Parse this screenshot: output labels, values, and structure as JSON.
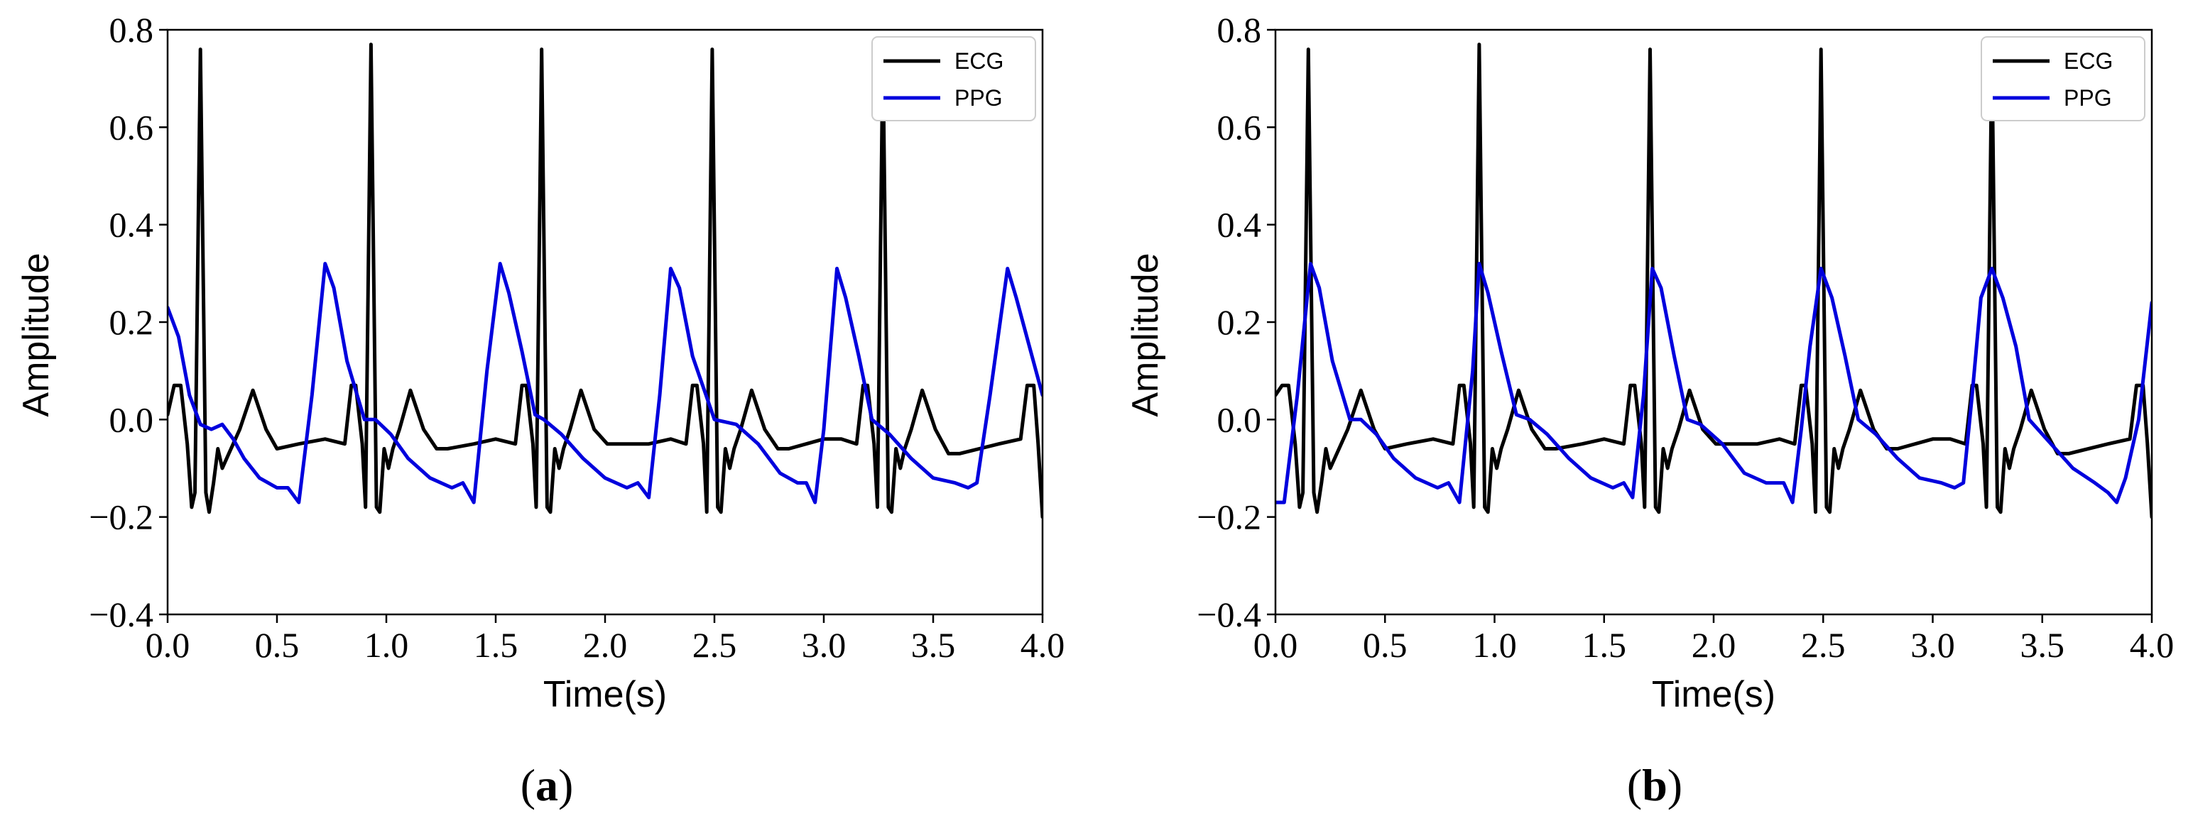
{
  "chart_data": [
    {
      "type": "line",
      "panel_label": "(a)",
      "xlabel": "Time(s)",
      "ylabel": "Amplitude",
      "xlim": [
        0,
        4
      ],
      "ylim": [
        -0.4,
        0.8
      ],
      "xticks": [
        0.0,
        0.5,
        1.0,
        1.5,
        2.0,
        2.5,
        3.0,
        3.5,
        4.0
      ],
      "xtick_labels": [
        "0.0",
        "0.5",
        "1.0",
        "1.5",
        "2.0",
        "2.5",
        "3.0",
        "3.5",
        "4.0"
      ],
      "yticks": [
        -0.4,
        -0.2,
        0.0,
        0.2,
        0.4,
        0.6,
        0.8
      ],
      "ytick_labels": [
        "−0.4",
        "−0.2",
        "0.0",
        "0.2",
        "0.4",
        "0.6",
        "0.8"
      ],
      "legend_position": "top-right",
      "series": [
        {
          "name": "ECG",
          "color": "#000000",
          "x": [
            0.0,
            0.03,
            0.06,
            0.09,
            0.11,
            0.125,
            0.15,
            0.175,
            0.19,
            0.21,
            0.23,
            0.25,
            0.28,
            0.33,
            0.39,
            0.45,
            0.5,
            0.6,
            0.72,
            0.81,
            0.84,
            0.86,
            0.89,
            0.905,
            0.93,
            0.955,
            0.97,
            0.99,
            1.01,
            1.03,
            1.06,
            1.11,
            1.17,
            1.23,
            1.28,
            1.4,
            1.5,
            1.59,
            1.62,
            1.64,
            1.67,
            1.685,
            1.71,
            1.735,
            1.75,
            1.77,
            1.79,
            1.81,
            1.84,
            1.89,
            1.95,
            2.01,
            2.06,
            2.2,
            2.3,
            2.37,
            2.4,
            2.42,
            2.45,
            2.465,
            2.49,
            2.515,
            2.53,
            2.55,
            2.57,
            2.59,
            2.62,
            2.67,
            2.73,
            2.79,
            2.84,
            3.0,
            3.08,
            3.15,
            3.18,
            3.2,
            3.23,
            3.245,
            3.27,
            3.295,
            3.31,
            3.33,
            3.35,
            3.37,
            3.4,
            3.45,
            3.51,
            3.57,
            3.62,
            3.8,
            3.9,
            3.93,
            3.96,
            3.98,
            4.0
          ],
          "values": [
            0.01,
            0.07,
            0.07,
            -0.05,
            -0.18,
            -0.15,
            0.76,
            -0.15,
            -0.19,
            -0.13,
            -0.06,
            -0.1,
            -0.07,
            -0.02,
            0.06,
            -0.02,
            -0.06,
            -0.05,
            -0.04,
            -0.05,
            0.07,
            0.07,
            -0.05,
            -0.18,
            0.77,
            -0.18,
            -0.19,
            -0.06,
            -0.1,
            -0.06,
            -0.02,
            0.06,
            -0.02,
            -0.06,
            -0.06,
            -0.05,
            -0.04,
            -0.05,
            0.07,
            0.07,
            -0.05,
            -0.18,
            0.76,
            -0.18,
            -0.19,
            -0.06,
            -0.1,
            -0.06,
            -0.02,
            0.06,
            -0.02,
            -0.05,
            -0.05,
            -0.05,
            -0.04,
            -0.05,
            0.07,
            0.07,
            -0.05,
            -0.19,
            0.76,
            -0.18,
            -0.19,
            -0.06,
            -0.1,
            -0.06,
            -0.02,
            0.06,
            -0.02,
            -0.06,
            -0.06,
            -0.04,
            -0.04,
            -0.05,
            0.07,
            0.07,
            -0.05,
            -0.18,
            0.76,
            -0.18,
            -0.19,
            -0.06,
            -0.1,
            -0.06,
            -0.02,
            0.06,
            -0.02,
            -0.07,
            -0.07,
            -0.05,
            -0.04,
            0.07,
            0.07,
            -0.05,
            -0.2
          ]
        },
        {
          "name": "PPG",
          "color": "#0000dd",
          "x": [
            0.0,
            0.05,
            0.1,
            0.15,
            0.2,
            0.25,
            0.3,
            0.35,
            0.42,
            0.5,
            0.55,
            0.6,
            0.66,
            0.72,
            0.76,
            0.82,
            0.9,
            0.95,
            1.02,
            1.1,
            1.2,
            1.3,
            1.35,
            1.4,
            1.46,
            1.52,
            1.56,
            1.62,
            1.68,
            1.72,
            1.8,
            1.9,
            2.0,
            2.1,
            2.15,
            2.2,
            2.25,
            2.3,
            2.34,
            2.4,
            2.5,
            2.6,
            2.7,
            2.8,
            2.88,
            2.92,
            2.96,
            3.0,
            3.06,
            3.1,
            3.16,
            3.22,
            3.3,
            3.4,
            3.5,
            3.6,
            3.66,
            3.7,
            3.76,
            3.84,
            3.88,
            3.94,
            4.0
          ],
          "values": [
            0.23,
            0.17,
            0.05,
            -0.01,
            -0.02,
            -0.01,
            -0.04,
            -0.08,
            -0.12,
            -0.14,
            -0.14,
            -0.17,
            0.05,
            0.32,
            0.27,
            0.12,
            0.0,
            0.0,
            -0.03,
            -0.08,
            -0.12,
            -0.14,
            -0.13,
            -0.17,
            0.1,
            0.32,
            0.26,
            0.14,
            0.01,
            0.0,
            -0.03,
            -0.08,
            -0.12,
            -0.14,
            -0.13,
            -0.16,
            0.05,
            0.31,
            0.27,
            0.13,
            0.0,
            -0.01,
            -0.05,
            -0.11,
            -0.13,
            -0.13,
            -0.17,
            -0.02,
            0.31,
            0.25,
            0.13,
            0.0,
            -0.03,
            -0.08,
            -0.12,
            -0.13,
            -0.14,
            -0.13,
            0.05,
            0.31,
            0.25,
            0.15,
            0.05
          ]
        }
      ]
    },
    {
      "type": "line",
      "panel_label": "(b)",
      "xlabel": "Time(s)",
      "ylabel": "Amplitude",
      "xlim": [
        0,
        4
      ],
      "ylim": [
        -0.4,
        0.8
      ],
      "xticks": [
        0.0,
        0.5,
        1.0,
        1.5,
        2.0,
        2.5,
        3.0,
        3.5,
        4.0
      ],
      "xtick_labels": [
        "0.0",
        "0.5",
        "1.0",
        "1.5",
        "2.0",
        "2.5",
        "3.0",
        "3.5",
        "4.0"
      ],
      "yticks": [
        -0.4,
        -0.2,
        0.0,
        0.2,
        0.4,
        0.6,
        0.8
      ],
      "ytick_labels": [
        "−0.4",
        "−0.2",
        "0.0",
        "0.2",
        "0.4",
        "0.6",
        "0.8"
      ],
      "legend_position": "top-right",
      "series": [
        {
          "name": "ECG",
          "color": "#000000",
          "x": [
            0.0,
            0.03,
            0.06,
            0.09,
            0.11,
            0.125,
            0.15,
            0.175,
            0.19,
            0.21,
            0.23,
            0.25,
            0.28,
            0.33,
            0.39,
            0.45,
            0.5,
            0.6,
            0.72,
            0.81,
            0.84,
            0.86,
            0.89,
            0.905,
            0.93,
            0.955,
            0.97,
            0.99,
            1.01,
            1.03,
            1.06,
            1.11,
            1.17,
            1.23,
            1.28,
            1.4,
            1.5,
            1.59,
            1.62,
            1.64,
            1.67,
            1.685,
            1.71,
            1.735,
            1.75,
            1.77,
            1.79,
            1.81,
            1.84,
            1.89,
            1.95,
            2.01,
            2.06,
            2.2,
            2.3,
            2.37,
            2.4,
            2.42,
            2.45,
            2.465,
            2.49,
            2.515,
            2.53,
            2.55,
            2.57,
            2.59,
            2.62,
            2.67,
            2.73,
            2.79,
            2.84,
            3.0,
            3.08,
            3.15,
            3.18,
            3.2,
            3.23,
            3.245,
            3.27,
            3.295,
            3.31,
            3.33,
            3.35,
            3.37,
            3.4,
            3.45,
            3.51,
            3.57,
            3.62,
            3.8,
            3.9,
            3.93,
            3.96,
            3.98,
            4.0
          ],
          "values": [
            0.05,
            0.07,
            0.07,
            -0.05,
            -0.18,
            -0.15,
            0.76,
            -0.15,
            -0.19,
            -0.13,
            -0.06,
            -0.1,
            -0.07,
            -0.02,
            0.06,
            -0.02,
            -0.06,
            -0.05,
            -0.04,
            -0.05,
            0.07,
            0.07,
            -0.05,
            -0.18,
            0.77,
            -0.18,
            -0.19,
            -0.06,
            -0.1,
            -0.06,
            -0.02,
            0.06,
            -0.02,
            -0.06,
            -0.06,
            -0.05,
            -0.04,
            -0.05,
            0.07,
            0.07,
            -0.05,
            -0.18,
            0.76,
            -0.18,
            -0.19,
            -0.06,
            -0.1,
            -0.06,
            -0.02,
            0.06,
            -0.02,
            -0.05,
            -0.05,
            -0.05,
            -0.04,
            -0.05,
            0.07,
            0.07,
            -0.05,
            -0.19,
            0.76,
            -0.18,
            -0.19,
            -0.06,
            -0.1,
            -0.06,
            -0.02,
            0.06,
            -0.02,
            -0.06,
            -0.06,
            -0.04,
            -0.04,
            -0.05,
            0.07,
            0.07,
            -0.05,
            -0.18,
            0.76,
            -0.18,
            -0.19,
            -0.06,
            -0.1,
            -0.06,
            -0.02,
            0.06,
            -0.02,
            -0.07,
            -0.07,
            -0.05,
            -0.04,
            0.07,
            0.07,
            -0.05,
            -0.2
          ]
        },
        {
          "name": "PPG",
          "color": "#0000dd",
          "x": [
            0.0,
            0.04,
            0.1,
            0.16,
            0.2,
            0.26,
            0.34,
            0.39,
            0.46,
            0.54,
            0.64,
            0.74,
            0.79,
            0.84,
            0.9,
            0.93,
            0.97,
            1.03,
            1.1,
            1.16,
            1.24,
            1.34,
            1.44,
            1.54,
            1.59,
            1.63,
            1.68,
            1.72,
            1.76,
            1.82,
            1.88,
            1.94,
            2.04,
            2.14,
            2.24,
            2.32,
            2.36,
            2.4,
            2.44,
            2.49,
            2.54,
            2.6,
            2.66,
            2.74,
            2.84,
            2.94,
            3.04,
            3.1,
            3.14,
            3.18,
            3.22,
            3.27,
            3.32,
            3.38,
            3.44,
            3.54,
            3.64,
            3.74,
            3.8,
            3.84,
            3.88,
            3.94,
            4.0
          ],
          "values": [
            -0.17,
            -0.17,
            0.05,
            0.32,
            0.27,
            0.12,
            0.0,
            0.0,
            -0.03,
            -0.08,
            -0.12,
            -0.14,
            -0.13,
            -0.17,
            0.1,
            0.32,
            0.26,
            0.14,
            0.01,
            0.0,
            -0.03,
            -0.08,
            -0.12,
            -0.14,
            -0.13,
            -0.16,
            0.05,
            0.31,
            0.27,
            0.13,
            0.0,
            -0.01,
            -0.05,
            -0.11,
            -0.13,
            -0.13,
            -0.17,
            -0.02,
            0.15,
            0.31,
            0.25,
            0.13,
            0.0,
            -0.03,
            -0.08,
            -0.12,
            -0.13,
            -0.14,
            -0.13,
            0.05,
            0.25,
            0.31,
            0.25,
            0.15,
            0.0,
            -0.05,
            -0.1,
            -0.13,
            -0.15,
            -0.17,
            -0.12,
            0.0,
            0.24
          ]
        }
      ]
    }
  ]
}
